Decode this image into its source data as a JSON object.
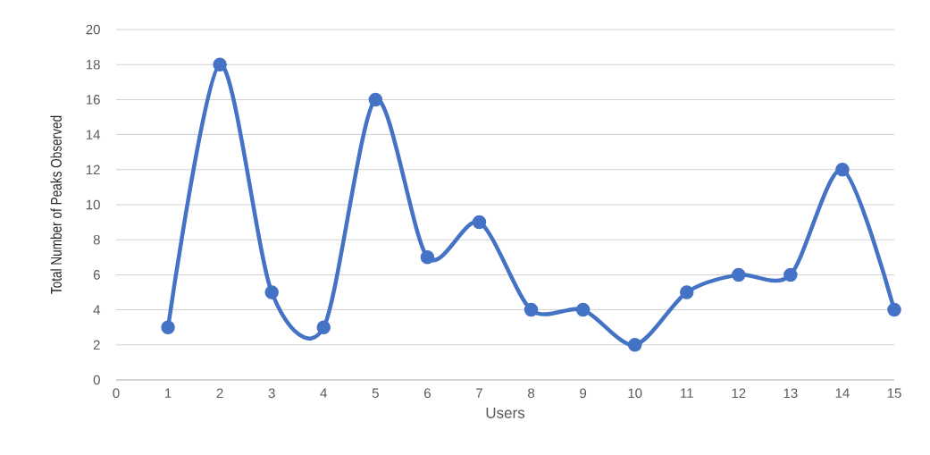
{
  "chart_data": {
    "type": "line",
    "xlabel": "Users",
    "ylabel": "Total Number of Peaks Observed",
    "x": [
      1,
      2,
      3,
      4,
      5,
      6,
      7,
      8,
      9,
      10,
      11,
      12,
      13,
      14,
      15
    ],
    "values": [
      3,
      18,
      5,
      3,
      16,
      7,
      9,
      4,
      4,
      2,
      5,
      6,
      6,
      12,
      4
    ],
    "color": "#4472c4",
    "marker": "circle",
    "line_style": "solid",
    "grid": "y",
    "xlim": [
      0,
      15
    ],
    "xticks": [
      0,
      1,
      2,
      3,
      4,
      5,
      6,
      7,
      8,
      9,
      10,
      11,
      12,
      13,
      14,
      15
    ],
    "ylim": [
      0,
      20
    ],
    "yticks": [
      0,
      2,
      4,
      6,
      8,
      10,
      12,
      14,
      16,
      18,
      20
    ]
  }
}
